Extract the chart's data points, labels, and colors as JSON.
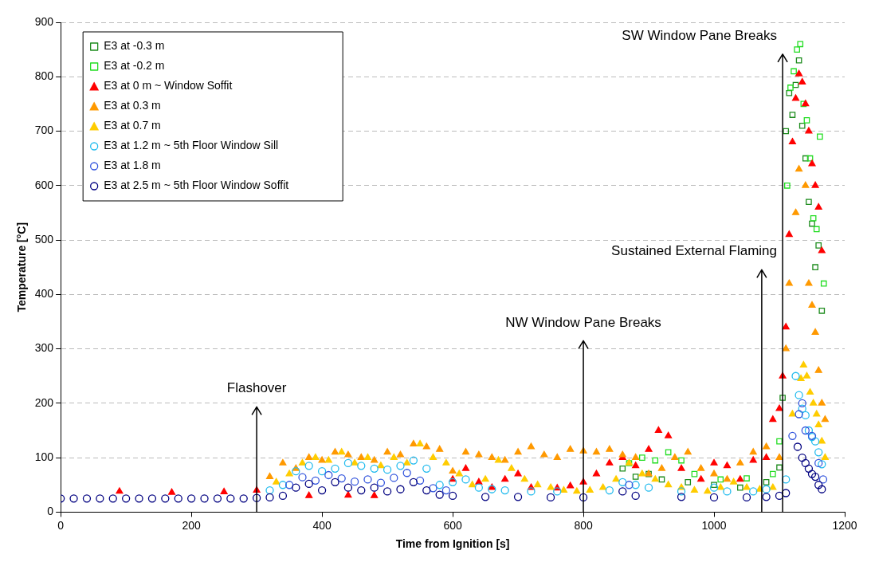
{
  "chart_data": {
    "type": "scatter",
    "xlabel": "Time from Ignition [s]",
    "ylabel": "Temperature [°C]",
    "xlim": [
      0,
      1200
    ],
    "xticks": [
      0,
      200,
      400,
      600,
      800,
      1000,
      1200
    ],
    "ylim": [
      0,
      900
    ],
    "yticks": [
      0,
      100,
      200,
      300,
      400,
      500,
      600,
      700,
      800,
      900
    ],
    "grid": "y",
    "legend": "top left",
    "ref_lines": [
      {
        "axis": "x",
        "value": 300,
        "label": "Flashover",
        "color": "#000000"
      },
      {
        "axis": "x",
        "value": 800,
        "label": "NW Window Pane Breaks",
        "color": "#000000"
      },
      {
        "axis": "x",
        "value": 1073,
        "label": "Sustained External Flaming",
        "color": "#000000"
      },
      {
        "axis": "x",
        "value": 1105,
        "label": "SW Window Pane Breaks",
        "color": "#000000"
      }
    ],
    "series": [
      {
        "name": "E3 at -0.3 m",
        "color": "#1e8c1e",
        "marker": "square",
        "x": [
          860,
          880,
          900,
          920,
          960,
          1000,
          1040,
          1080,
          1100,
          1105,
          1110,
          1115,
          1120,
          1125,
          1130,
          1135,
          1140,
          1145,
          1150,
          1155,
          1160,
          1165
        ],
        "values": [
          80,
          65,
          70,
          60,
          55,
          50,
          45,
          55,
          82,
          210,
          700,
          770,
          730,
          785,
          830,
          710,
          650,
          570,
          530,
          450,
          490,
          370
        ]
      },
      {
        "name": "E3 at -0.2 m",
        "color": "#22dd22",
        "marker": "square",
        "x": [
          870,
          890,
          910,
          930,
          950,
          970,
          1010,
          1050,
          1090,
          1100,
          1112,
          1117,
          1122,
          1127,
          1132,
          1137,
          1142,
          1147,
          1152,
          1157,
          1162,
          1168
        ],
        "values": [
          90,
          100,
          95,
          110,
          95,
          70,
          60,
          62,
          70,
          130,
          600,
          780,
          810,
          850,
          860,
          750,
          720,
          650,
          540,
          520,
          690,
          420
        ]
      },
      {
        "name": "E3 at 0 m ~ Window Soffit",
        "color": "#ff0000",
        "marker": "triangle",
        "x": [
          90,
          170,
          250,
          300,
          380,
          440,
          480,
          600,
          620,
          640,
          660,
          680,
          700,
          720,
          760,
          780,
          800,
          820,
          840,
          860,
          880,
          900,
          915,
          930,
          950,
          980,
          1000,
          1020,
          1040,
          1060,
          1080,
          1090,
          1100,
          1105,
          1110,
          1115,
          1120,
          1125,
          1130,
          1135,
          1140,
          1145,
          1150,
          1155,
          1160,
          1165
        ],
        "values": [
          38,
          36,
          37,
          40,
          30,
          31,
          30,
          60,
          80,
          55,
          45,
          60,
          70,
          45,
          44,
          48,
          55,
          70,
          90,
          100,
          85,
          115,
          150,
          140,
          80,
          60,
          90,
          85,
          60,
          95,
          100,
          170,
          190,
          250,
          340,
          510,
          680,
          760,
          805,
          790,
          750,
          700,
          640,
          600,
          560,
          480
        ]
      },
      {
        "name": "E3 at 0.3 m",
        "color": "#ff9900",
        "marker": "triangle",
        "x": [
          320,
          340,
          360,
          380,
          400,
          420,
          440,
          460,
          480,
          500,
          520,
          540,
          560,
          580,
          600,
          620,
          640,
          660,
          680,
          700,
          720,
          740,
          760,
          780,
          800,
          820,
          840,
          860,
          880,
          900,
          920,
          940,
          960,
          980,
          1000,
          1020,
          1040,
          1060,
          1080,
          1100,
          1110,
          1115,
          1125,
          1130,
          1140,
          1145,
          1150,
          1155,
          1160,
          1165,
          1170
        ],
        "values": [
          65,
          90,
          80,
          100,
          95,
          110,
          105,
          100,
          95,
          110,
          105,
          125,
          120,
          115,
          75,
          110,
          105,
          100,
          95,
          110,
          120,
          105,
          100,
          115,
          112,
          110,
          115,
          105,
          100,
          70,
          80,
          100,
          110,
          80,
          70,
          60,
          90,
          110,
          120,
          100,
          300,
          420,
          550,
          630,
          600,
          420,
          380,
          330,
          260,
          200,
          170
        ]
      },
      {
        "name": "E3 at 0.7 m",
        "color": "#ffcc00",
        "marker": "triangle",
        "x": [
          330,
          350,
          370,
          390,
          410,
          430,
          450,
          470,
          490,
          510,
          530,
          550,
          570,
          590,
          610,
          630,
          650,
          670,
          690,
          710,
          730,
          750,
          770,
          790,
          810,
          830,
          850,
          870,
          890,
          910,
          930,
          950,
          970,
          990,
          1010,
          1030,
          1050,
          1070,
          1090,
          1120,
          1133,
          1137,
          1142,
          1147,
          1152,
          1157,
          1160,
          1165,
          1170
        ],
        "values": [
          55,
          70,
          90,
          100,
          95,
          110,
          90,
          100,
          85,
          100,
          90,
          125,
          100,
          90,
          70,
          50,
          60,
          95,
          80,
          60,
          50,
          45,
          40,
          38,
          40,
          45,
          60,
          90,
          70,
          60,
          50,
          45,
          40,
          38,
          45,
          55,
          45,
          42,
          45,
          180,
          245,
          270,
          250,
          220,
          200,
          180,
          160,
          130,
          100
        ]
      },
      {
        "name": "E3 at 1.2 m ~ 5th Floor Window Sill",
        "color": "#22bbee",
        "marker": "circle",
        "x": [
          320,
          340,
          360,
          380,
          400,
          420,
          440,
          460,
          480,
          500,
          520,
          540,
          560,
          580,
          600,
          620,
          640,
          660,
          680,
          720,
          760,
          840,
          860,
          880,
          900,
          950,
          1000,
          1020,
          1060,
          1080,
          1110,
          1125,
          1130,
          1135,
          1140,
          1145,
          1150,
          1155,
          1160,
          1165
        ],
        "values": [
          40,
          50,
          75,
          85,
          75,
          80,
          90,
          85,
          80,
          78,
          85,
          95,
          80,
          50,
          55,
          60,
          45,
          42,
          40,
          38,
          38,
          40,
          55,
          50,
          45,
          38,
          45,
          38,
          38,
          42,
          60,
          250,
          215,
          190,
          178,
          150,
          138,
          130,
          110,
          88
        ]
      },
      {
        "name": "E3 at 1.8 m",
        "color": "#3355dd",
        "marker": "circle",
        "x": [
          350,
          370,
          390,
          410,
          430,
          450,
          470,
          490,
          510,
          530,
          550,
          570,
          590,
          870,
          1120,
          1130,
          1135,
          1140,
          1150,
          1160,
          1167
        ],
        "values": [
          50,
          64,
          58,
          68,
          62,
          56,
          60,
          54,
          63,
          72,
          58,
          44,
          40,
          50,
          140,
          180,
          200,
          150,
          140,
          90,
          60
        ]
      },
      {
        "name": "E3 at 2.5 m ~ 5th Floor Window Soffit",
        "color": "#000080",
        "marker": "circle",
        "x": [
          0,
          20,
          40,
          60,
          80,
          100,
          120,
          140,
          160,
          180,
          200,
          220,
          240,
          260,
          280,
          300,
          320,
          340,
          360,
          380,
          400,
          420,
          440,
          460,
          480,
          500,
          520,
          540,
          560,
          580,
          600,
          650,
          700,
          750,
          800,
          860,
          880,
          950,
          1000,
          1050,
          1080,
          1100,
          1110,
          1128,
          1135,
          1140,
          1145,
          1150,
          1155,
          1160,
          1165
        ],
        "values": [
          25,
          25,
          25,
          25,
          25,
          25,
          25,
          25,
          25,
          25,
          25,
          25,
          25,
          25,
          25,
          26,
          27,
          30,
          45,
          52,
          40,
          55,
          45,
          40,
          45,
          38,
          42,
          55,
          40,
          32,
          30,
          28,
          28,
          27,
          27,
          38,
          30,
          28,
          27,
          27,
          28,
          30,
          35,
          120,
          100,
          90,
          80,
          70,
          65,
          50,
          42
        ]
      }
    ]
  }
}
